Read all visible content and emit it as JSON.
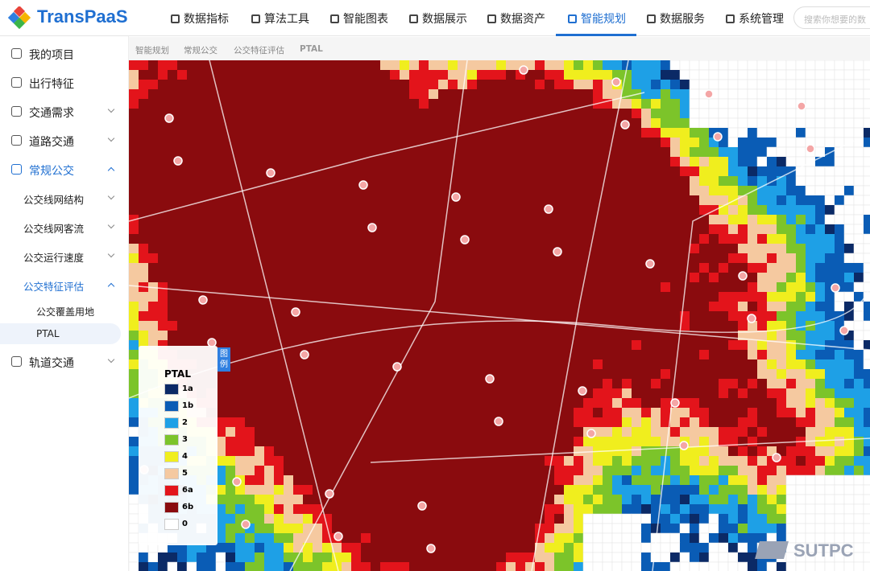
{
  "header": {
    "logo": "TransPaaS",
    "nav": [
      "数据指标",
      "算法工具",
      "智能图表",
      "数据展示",
      "数据资产",
      "智能规划",
      "数据服务",
      "系统管理"
    ],
    "search_placeholder": "搜索你想要的数"
  },
  "sidebar": {
    "items": [
      "我的项目",
      "出行特征",
      "交通需求",
      "道路交通",
      "常规公交",
      "公交线网结构",
      "公交线网客流",
      "公交运行速度",
      "公交特征评估",
      "公交覆盖用地",
      "PTAL",
      "轨道交通"
    ]
  },
  "breadcrumb": [
    "智能规划",
    "常规公交",
    "公交特征评估",
    "PTAL"
  ],
  "legend": {
    "tab": "图例",
    "title": "PTAL",
    "items": [
      {
        "label": "1a",
        "color": "#0b2a66"
      },
      {
        "label": "1b",
        "color": "#0a5cb5"
      },
      {
        "label": "2",
        "color": "#1ea0e6"
      },
      {
        "label": "3",
        "color": "#7cc42a"
      },
      {
        "label": "4",
        "color": "#f0ee1e"
      },
      {
        "label": "5",
        "color": "#f5c9a0"
      },
      {
        "label": "6a",
        "color": "#e3141b"
      },
      {
        "label": "6b",
        "color": "#8a0b0e"
      },
      {
        "label": "0",
        "color": "#ffffff"
      }
    ]
  },
  "watermark": "SUTPC"
}
